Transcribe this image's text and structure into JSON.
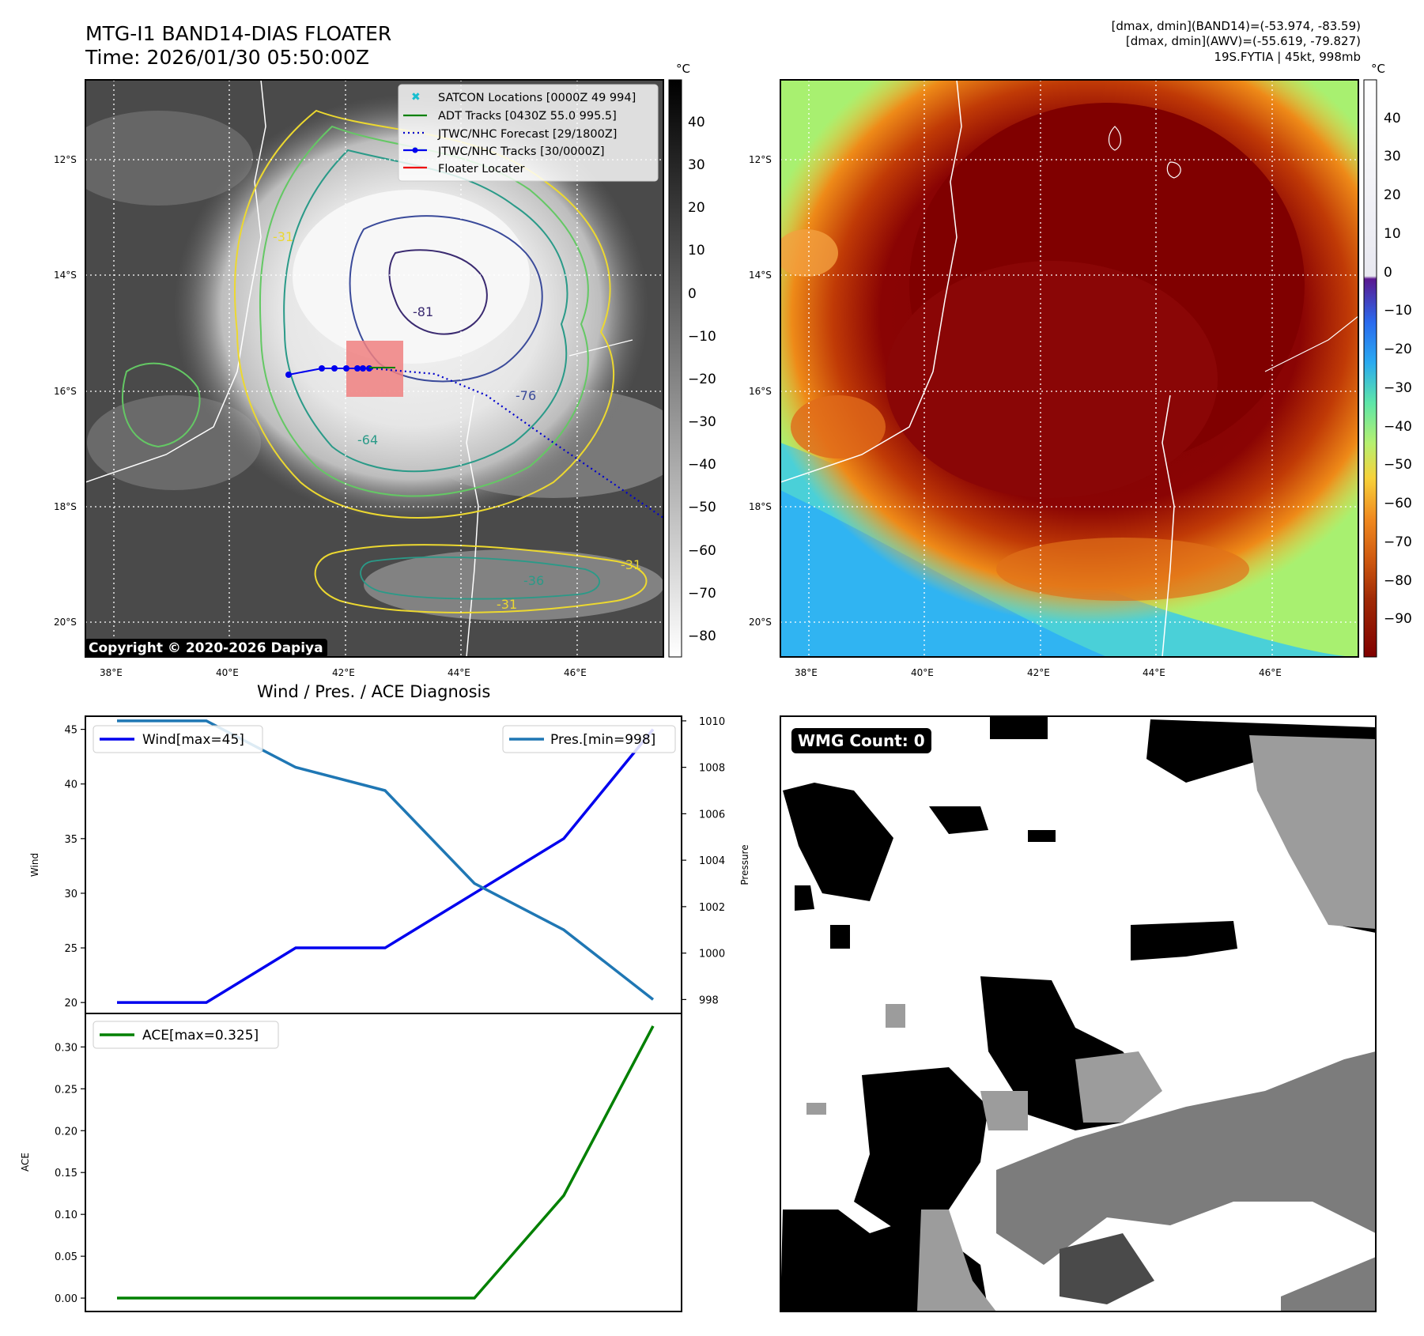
{
  "header": {
    "title_line1": "MTG-I1 BAND14-DIAS FLOATER",
    "title_line2": "Time: 2026/01/30 05:50:00Z",
    "stats_line1": "[dmax, dmin](BAND14)=(-53.974, -83.59)",
    "stats_line2": "[dmax, dmin](AWV)=(-55.619, -79.827)",
    "stats_line3": "19S.FYTIA | 45kt, 998mb"
  },
  "copyright": "Copyright © 2020-2026 Dapiya",
  "map_axes": {
    "lon_labels": [
      "38°E",
      "40°E",
      "42°E",
      "44°E",
      "46°E"
    ],
    "lat_labels": [
      "12°S",
      "14°S",
      "16°S",
      "18°S",
      "20°S"
    ]
  },
  "colorbar_gray": {
    "unit": "°C",
    "ticks": [
      "40",
      "30",
      "20",
      "10",
      "0",
      "−10",
      "−20",
      "−30",
      "−40",
      "−50",
      "−60",
      "−70",
      "−80"
    ]
  },
  "colorbar_color": {
    "unit": "°C",
    "ticks": [
      "40",
      "30",
      "20",
      "10",
      "0",
      "−10",
      "−20",
      "−30",
      "−40",
      "−50",
      "−60",
      "−70",
      "−80",
      "−90"
    ]
  },
  "legend": {
    "satcon": "SATCON Locations [0000Z 49 994]",
    "adt": "ADT Tracks [0430Z 55.0 995.5]",
    "forecast": "JTWC/NHC Forecast [29/1800Z]",
    "tracks": "JTWC/NHC Tracks [30/0000Z]",
    "floater": "Floater Locater"
  },
  "contour_labels": [
    "-31",
    "-81",
    "-76",
    "-64",
    "-31",
    "-31",
    "-36"
  ],
  "wmg": {
    "label": "WMG Count: 0"
  },
  "colors": {
    "wind": "#0000ee",
    "pressure": "#1f77b4",
    "ace": "#008000",
    "forecast": "#0000cc",
    "floater": "#f08080"
  },
  "chart_data": [
    {
      "type": "line",
      "title": "Wind / Pres. / ACE Diagnosis",
      "xlabel": "",
      "ylabel": "Wind",
      "y2label": "Pressure",
      "x": [
        0,
        1,
        2,
        3,
        4,
        5,
        6
      ],
      "ylim": [
        19.0,
        46.2
      ],
      "y2lim": [
        997.4,
        1010.2
      ],
      "yticks": [
        "20",
        "25",
        "30",
        "35",
        "40",
        "45"
      ],
      "y2ticks": [
        "998",
        "1000",
        "1002",
        "1004",
        "1006",
        "1008",
        "1010"
      ],
      "series": [
        {
          "name": "Wind[max=45]",
          "axis": "left",
          "values": [
            20,
            20,
            25,
            25,
            30,
            35,
            45
          ]
        },
        {
          "name": "Pres.[min=998]",
          "axis": "right",
          "values": [
            1010,
            1010,
            1008,
            1007,
            1003,
            1001,
            998
          ]
        }
      ]
    },
    {
      "type": "line",
      "title": "",
      "xlabel": "",
      "ylabel": "ACE",
      "x": [
        0,
        1,
        2,
        3,
        4,
        5,
        6
      ],
      "ylim": [
        -0.016,
        0.34
      ],
      "yticks": [
        "0.00",
        "0.05",
        "0.10",
        "0.15",
        "0.20",
        "0.25",
        "0.30"
      ],
      "series": [
        {
          "name": "ACE[max=0.325]",
          "values": [
            0,
            0,
            0,
            0,
            0,
            0.1225,
            0.325
          ]
        }
      ]
    }
  ]
}
